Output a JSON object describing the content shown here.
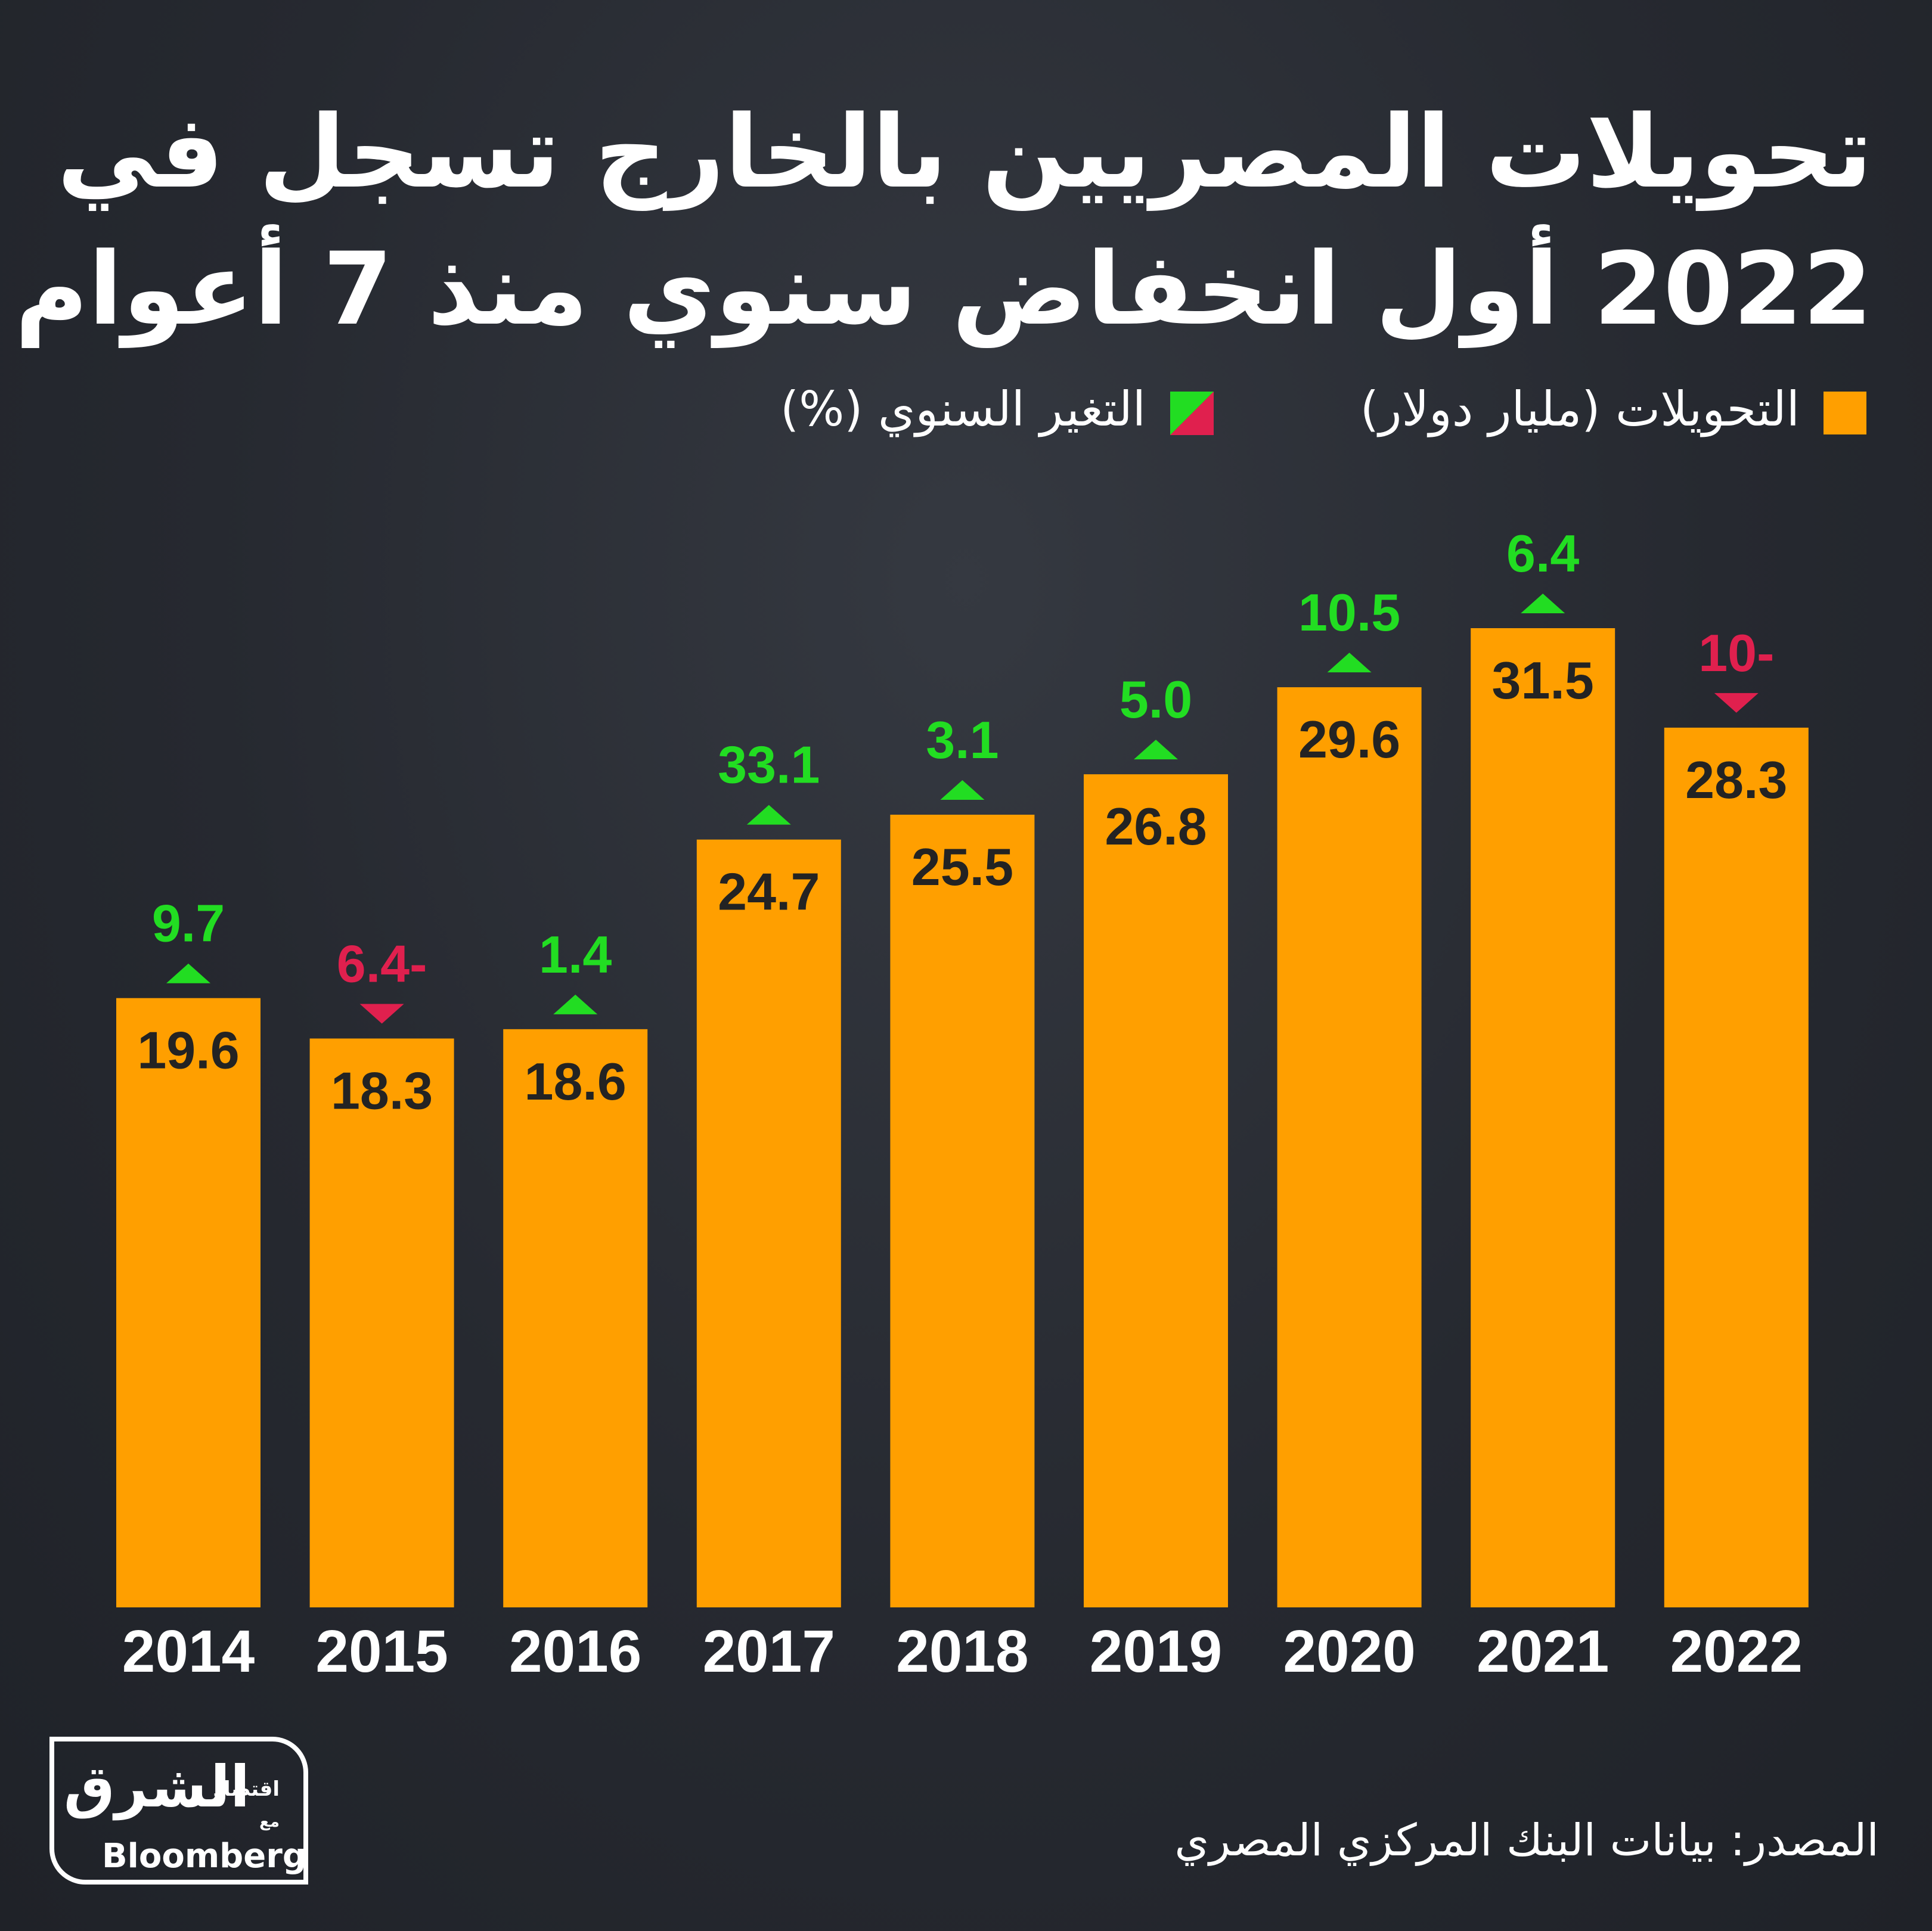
{
  "chart_data": {
    "type": "bar",
    "title": [
      "تحويلات المصريين بالخارج تسجل في",
      "2022 أول انخفاض سنوي منذ 7 أعوام"
    ],
    "categories": [
      "2014",
      "2015",
      "2016",
      "2017",
      "2018",
      "2019",
      "2020",
      "2021",
      "2022"
    ],
    "series": [
      {
        "name": "التحويلات (مليار دولار)",
        "color": "#ff9f00",
        "values": [
          19.6,
          18.3,
          18.6,
          24.7,
          25.5,
          26.8,
          29.6,
          31.5,
          28.3
        ]
      },
      {
        "name": "التغير السنوي (%)",
        "positive_color": "#22dd22",
        "negative_color": "#e0204e",
        "values": [
          9.7,
          -6.4,
          1.4,
          33.1,
          3.1,
          5.0,
          10.5,
          6.4,
          -10
        ],
        "value_labels": [
          "9.7",
          "6.4-",
          "1.4",
          "33.1",
          "3.1",
          "5.0",
          "10.5",
          "6.4",
          "10-"
        ]
      }
    ],
    "source": "المصدر: بيانات البنك المركزي المصري",
    "logo": {
      "name": "الشرق",
      "sub": "اقتصاد",
      "with": "مع",
      "partner": "Bloomberg"
    }
  }
}
